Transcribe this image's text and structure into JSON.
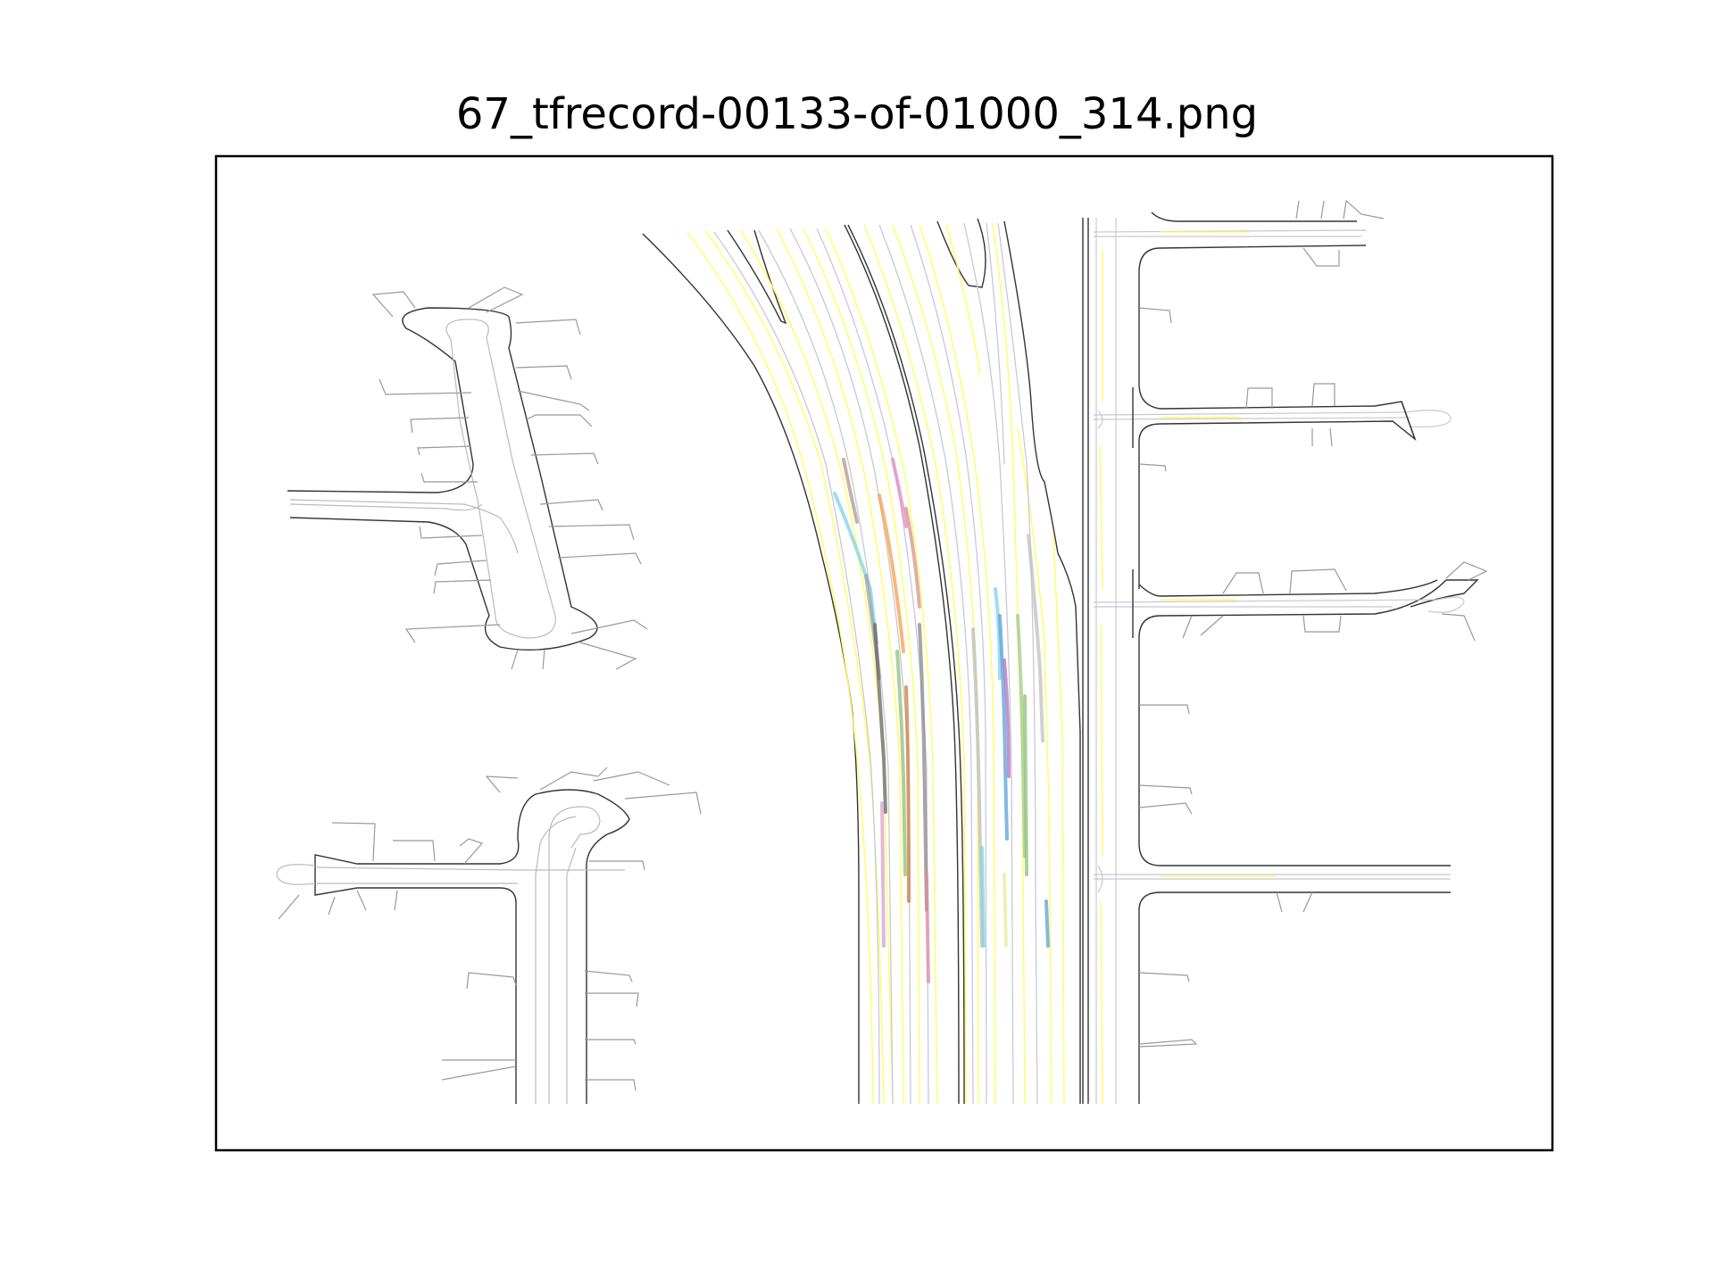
{
  "figure": {
    "title": "67_tfrecord-00133-of-01000_314.png"
  },
  "colors": {
    "frame": "#000000",
    "road_edge": "#333333",
    "lane_center": "#b8b8c8",
    "lane_marking_yellow": "#ffff55",
    "driveway_line": "#808080",
    "trajectories": [
      "#7dd3e8",
      "#f4a04a",
      "#e08cc0",
      "#8fbf7a",
      "#666666",
      "#b29a8a",
      "#5aa0d8",
      "#d8a0d0",
      "#c0c0c0",
      "#e8e8a0"
    ]
  },
  "map_features": {
    "trajectory_count": 22
  }
}
